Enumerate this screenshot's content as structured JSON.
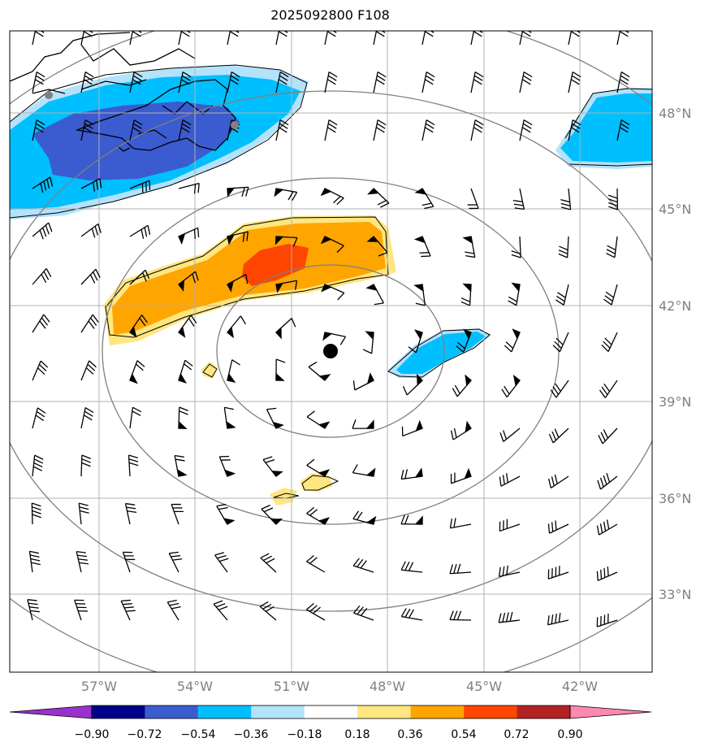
{
  "title": "2025092800 F108",
  "map": {
    "lat_labels": [
      "48°N",
      "45°N",
      "42°N",
      "39°N",
      "36°N",
      "33°N"
    ],
    "lon_labels": [
      "57°W",
      "54°W",
      "51°W",
      "48°W",
      "45°W",
      "42°W"
    ],
    "label_color": "#808080",
    "gridline_color": "#b0b0b0",
    "range_ring_color": "#808080",
    "center_marker": "storm-center-dot"
  },
  "colorbar": {
    "ticks": [
      "−0.90",
      "−0.72",
      "−0.54",
      "−0.36",
      "−0.18",
      "0.18",
      "0.36",
      "0.54",
      "0.72",
      "0.90"
    ],
    "colors": [
      "#9932cc",
      "#00008b",
      "#3b5bd0",
      "#00bfff",
      "#b3e2fb",
      "#ffffff",
      "#ffe680",
      "#ffa500",
      "#ff4500",
      "#b22222",
      "#ff88b0"
    ]
  },
  "shading_colors": {
    "light_blue": "#b3e2fb",
    "blue": "#00bfff",
    "royal_blue": "#3b5bd0",
    "light_yellow": "#ffe680",
    "orange": "#ffa500",
    "red_orange": "#ff4500"
  }
}
